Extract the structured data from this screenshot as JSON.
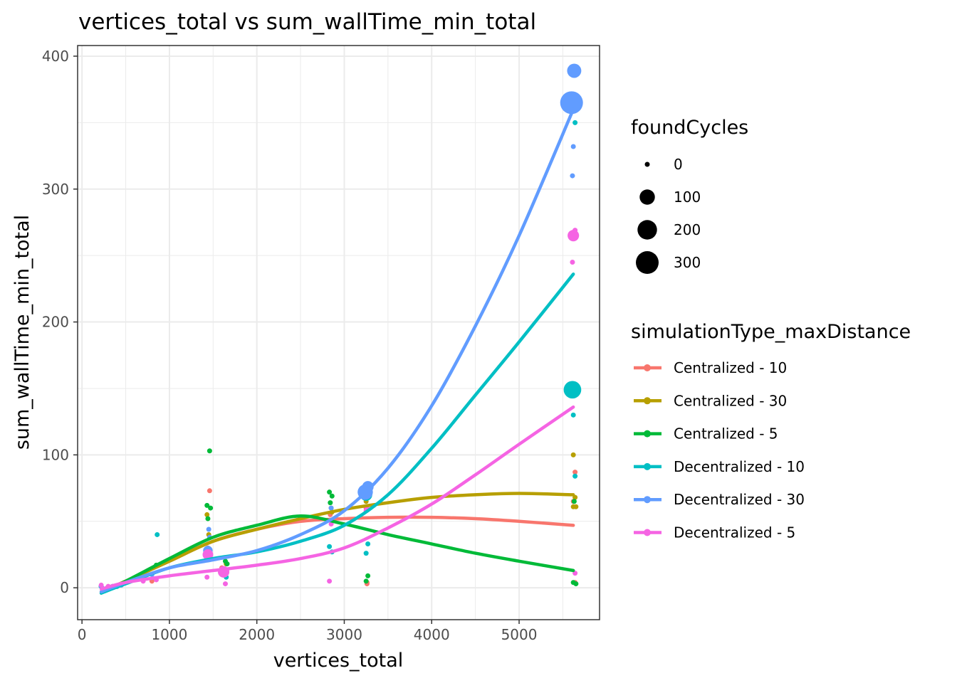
{
  "chart_data": {
    "type": "scatter",
    "title": "vertices_total  vs  sum_wallTime_min_total",
    "xlabel": "vertices_total",
    "ylabel": "sum_wallTime_min_total",
    "xlim": [
      -50,
      5920
    ],
    "ylim": [
      -24,
      408
    ],
    "x_ticks": [
      0,
      1000,
      2000,
      3000,
      4000,
      5000
    ],
    "y_ticks": [
      0,
      100,
      200,
      300,
      400
    ],
    "grid": true,
    "size_legend": {
      "title": "foundCycles",
      "entries": [
        {
          "label": "0",
          "value": 0
        },
        {
          "label": "100",
          "value": 100
        },
        {
          "label": "200",
          "value": 200
        },
        {
          "label": "300",
          "value": 300
        }
      ]
    },
    "color_legend": {
      "title": "simulationType_maxDistance",
      "placement": "right"
    },
    "series": [
      {
        "name": "Centralized - 10",
        "color": "#F8766D",
        "points": [
          [
            220,
            1,
            0
          ],
          [
            300,
            1,
            0
          ],
          [
            450,
            2,
            0
          ],
          [
            800,
            5,
            0
          ],
          [
            1460,
            73,
            0
          ],
          [
            1440,
            30,
            0
          ],
          [
            1600,
            15,
            0
          ],
          [
            2840,
            55,
            0
          ],
          [
            2860,
            50,
            0
          ],
          [
            3260,
            4,
            0
          ],
          [
            3260,
            3,
            0
          ],
          [
            3250,
            60,
            0
          ],
          [
            5640,
            87,
            0
          ],
          [
            5640,
            4,
            0
          ],
          [
            5620,
            65,
            0
          ]
        ],
        "trend": [
          [
            220,
            -3
          ],
          [
            500,
            5
          ],
          [
            1000,
            20
          ],
          [
            1500,
            35
          ],
          [
            2000,
            44
          ],
          [
            2500,
            50
          ],
          [
            3000,
            52
          ],
          [
            3500,
            53
          ],
          [
            4000,
            53
          ],
          [
            4500,
            52
          ],
          [
            5000,
            50
          ],
          [
            5620,
            47
          ]
        ]
      },
      {
        "name": "Centralized - 30",
        "color": "#B79F00",
        "points": [
          [
            220,
            1,
            0
          ],
          [
            350,
            1,
            0
          ],
          [
            700,
            6,
            0
          ],
          [
            1430,
            55,
            0
          ],
          [
            1450,
            40,
            0
          ],
          [
            1650,
            18,
            0
          ],
          [
            2850,
            60,
            0
          ],
          [
            2860,
            57,
            0
          ],
          [
            3250,
            65,
            0
          ],
          [
            5620,
            100,
            0
          ],
          [
            5640,
            68,
            0
          ],
          [
            5620,
            61,
            0
          ],
          [
            5650,
            61,
            0
          ]
        ],
        "trend": [
          [
            220,
            -3
          ],
          [
            500,
            5
          ],
          [
            1000,
            20
          ],
          [
            1500,
            35
          ],
          [
            2000,
            44
          ],
          [
            2500,
            52
          ],
          [
            3000,
            59
          ],
          [
            3500,
            64
          ],
          [
            4000,
            68
          ],
          [
            4500,
            70
          ],
          [
            5000,
            71
          ],
          [
            5620,
            70
          ]
        ]
      },
      {
        "name": "Centralized - 5",
        "color": "#00BA38",
        "points": [
          [
            220,
            1,
            0
          ],
          [
            400,
            1,
            0
          ],
          [
            850,
            17,
            0
          ],
          [
            1460,
            103,
            0
          ],
          [
            1430,
            62,
            0
          ],
          [
            1470,
            60,
            0
          ],
          [
            1440,
            52,
            0
          ],
          [
            1640,
            20,
            0
          ],
          [
            1660,
            18,
            0
          ],
          [
            2830,
            72,
            0
          ],
          [
            2860,
            69,
            0
          ],
          [
            2840,
            64,
            0
          ],
          [
            3270,
            9,
            0
          ],
          [
            3250,
            5,
            0
          ],
          [
            5620,
            4,
            0
          ],
          [
            5650,
            3,
            0
          ],
          [
            5630,
            65,
            0
          ]
        ],
        "trend": [
          [
            220,
            -4
          ],
          [
            500,
            5
          ],
          [
            1000,
            22
          ],
          [
            1500,
            38
          ],
          [
            2000,
            47
          ],
          [
            2500,
            54
          ],
          [
            3000,
            48
          ],
          [
            3500,
            40
          ],
          [
            4000,
            33
          ],
          [
            4500,
            26
          ],
          [
            5000,
            20
          ],
          [
            5620,
            13
          ]
        ]
      },
      {
        "name": "Decentralized - 10",
        "color": "#00BFC4",
        "points": [
          [
            220,
            1,
            0
          ],
          [
            400,
            1,
            0
          ],
          [
            860,
            40,
            0
          ],
          [
            1430,
            25,
            0
          ],
          [
            1650,
            8,
            0
          ],
          [
            2830,
            31,
            0
          ],
          [
            2860,
            27,
            0
          ],
          [
            3250,
            26,
            0
          ],
          [
            3270,
            33,
            0
          ],
          [
            3250,
            70,
            50
          ],
          [
            5640,
            350,
            0
          ],
          [
            5620,
            130,
            0
          ],
          [
            5610,
            149,
            150
          ],
          [
            5640,
            84,
            0
          ]
        ],
        "trend": [
          [
            220,
            -4
          ],
          [
            500,
            3
          ],
          [
            1000,
            15
          ],
          [
            1500,
            22
          ],
          [
            2000,
            27
          ],
          [
            2500,
            35
          ],
          [
            3000,
            47
          ],
          [
            3500,
            70
          ],
          [
            4000,
            105
          ],
          [
            4500,
            145
          ],
          [
            5000,
            185
          ],
          [
            5620,
            236
          ]
        ]
      },
      {
        "name": "Decentralized - 30",
        "color": "#619CFF",
        "points": [
          [
            220,
            1,
            0
          ],
          [
            350,
            1,
            0
          ],
          [
            450,
            2,
            0
          ],
          [
            800,
            10,
            0
          ],
          [
            1450,
            44,
            0
          ],
          [
            1460,
            38,
            0
          ],
          [
            1440,
            28,
            20
          ],
          [
            1630,
            14,
            0
          ],
          [
            2850,
            60,
            0
          ],
          [
            3240,
            72,
            100
          ],
          [
            3270,
            76,
            40
          ],
          [
            3230,
            68,
            0
          ],
          [
            5630,
            389,
            80
          ],
          [
            5600,
            365,
            300
          ],
          [
            5620,
            332,
            0
          ],
          [
            5610,
            310,
            0
          ]
        ],
        "trend": [
          [
            220,
            -3
          ],
          [
            500,
            4
          ],
          [
            1000,
            15
          ],
          [
            1500,
            21
          ],
          [
            2000,
            28
          ],
          [
            2500,
            40
          ],
          [
            3000,
            58
          ],
          [
            3500,
            90
          ],
          [
            4000,
            137
          ],
          [
            4500,
            197
          ],
          [
            5000,
            265
          ],
          [
            5620,
            360
          ]
        ]
      },
      {
        "name": "Decentralized - 5",
        "color": "#F564E3",
        "points": [
          [
            220,
            2,
            0
          ],
          [
            300,
            1,
            0
          ],
          [
            700,
            5,
            0
          ],
          [
            850,
            6,
            0
          ],
          [
            1440,
            25,
            30
          ],
          [
            1430,
            8,
            0
          ],
          [
            1460,
            22,
            0
          ],
          [
            1620,
            12,
            40
          ],
          [
            1640,
            3,
            0
          ],
          [
            2830,
            5,
            0
          ],
          [
            2850,
            48,
            0
          ],
          [
            3260,
            60,
            0
          ],
          [
            3250,
            58,
            0
          ],
          [
            5640,
            269,
            0
          ],
          [
            5620,
            265,
            40
          ],
          [
            5610,
            245,
            0
          ],
          [
            5640,
            11,
            0
          ]
        ],
        "trend": [
          [
            220,
            -1
          ],
          [
            500,
            4
          ],
          [
            1000,
            9
          ],
          [
            1500,
            13
          ],
          [
            2000,
            17
          ],
          [
            2500,
            22
          ],
          [
            3000,
            30
          ],
          [
            3500,
            45
          ],
          [
            4000,
            63
          ],
          [
            4500,
            85
          ],
          [
            5000,
            108
          ],
          [
            5620,
            136
          ]
        ]
      }
    ]
  }
}
